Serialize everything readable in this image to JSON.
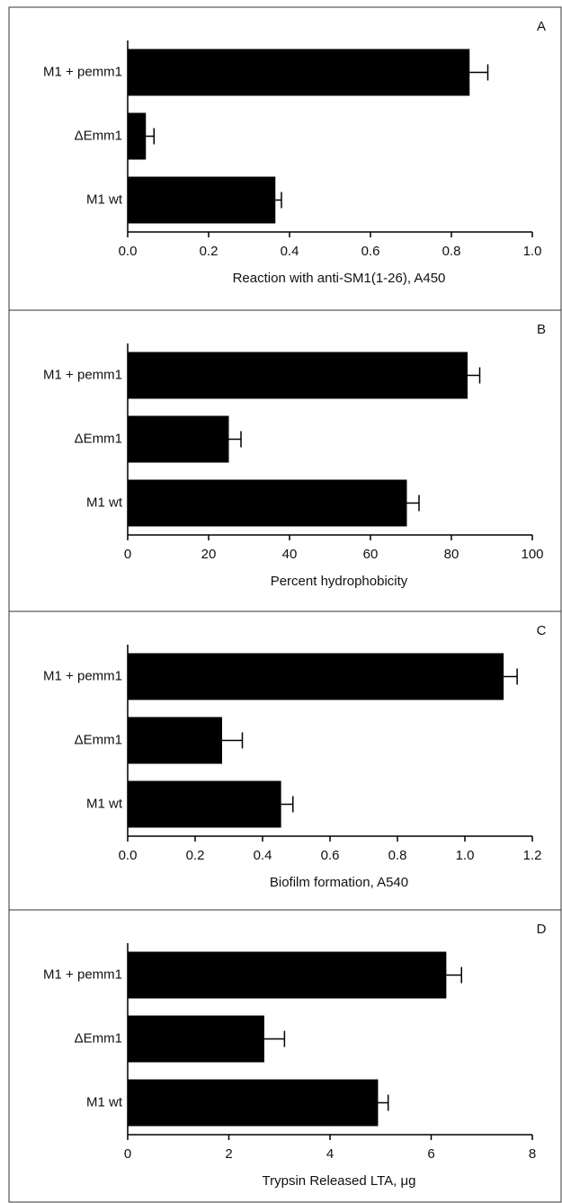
{
  "chart_data": [
    {
      "type": "bar",
      "panel": "A",
      "x_label": "Reaction with anti-SM1(1-26), A450",
      "categories": [
        "M1 + pemm1",
        "ΔEmm1",
        "M1 wt"
      ],
      "values": [
        0.845,
        0.045,
        0.365
      ],
      "errors": [
        0.045,
        0.02,
        0.015
      ],
      "color": "#000000",
      "xlim": [
        0,
        1
      ],
      "xticks": [
        {
          "value": 0,
          "label": "0.0"
        },
        0.2,
        0.4,
        0.6,
        0.8,
        {
          "value": 1,
          "label": "1.0"
        }
      ]
    },
    {
      "type": "bar",
      "panel": "B",
      "x_label": "Percent hydrophobicity",
      "categories": [
        "M1 + pemm1",
        "ΔEmm1",
        "M1 wt"
      ],
      "values": [
        84,
        25,
        69
      ],
      "errors": [
        3,
        3,
        3
      ],
      "color": "#000000",
      "xlim": [
        0,
        100
      ],
      "xticks": [
        0,
        20,
        40,
        60,
        80,
        100
      ]
    },
    {
      "type": "bar",
      "panel": "C",
      "x_label": "Biofilm formation, A540",
      "categories": [
        "M1 + pemm1",
        "ΔEmm1",
        "M1 wt"
      ],
      "values": [
        1.115,
        0.28,
        0.455
      ],
      "errors": [
        0.04,
        0.06,
        0.035
      ],
      "color": "#000000",
      "xlim": [
        0,
        1.2
      ],
      "xticks": [
        {
          "value": 0,
          "label": "0.0"
        },
        0.2,
        0.4,
        0.6,
        0.8,
        {
          "value": 1,
          "label": "1.0"
        },
        1.2
      ]
    },
    {
      "type": "bar",
      "panel": "D",
      "x_label": "Trypsin Released LTA, μg",
      "categories": [
        "M1 + pemm1",
        "ΔEmm1",
        "M1 wt"
      ],
      "values": [
        6.3,
        2.7,
        4.95
      ],
      "errors": [
        0.3,
        0.4,
        0.2
      ],
      "color": "#000000",
      "xlim": [
        0,
        8
      ],
      "xticks": [
        0,
        2,
        4,
        6,
        8
      ]
    }
  ]
}
